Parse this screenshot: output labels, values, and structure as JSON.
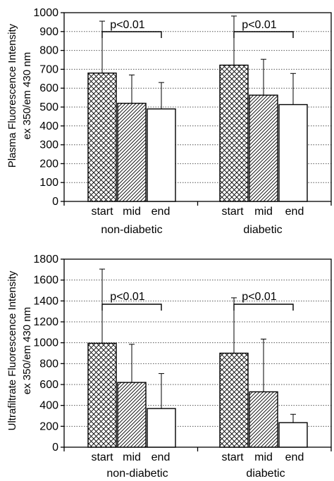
{
  "chart_data": [
    {
      "type": "bar",
      "ylabel_line1": "Plasma Fluorescence Intensity",
      "ylabel_line2": "ex 350/em 430 nm",
      "ylim": [
        0,
        1000
      ],
      "yticks": [
        0,
        100,
        200,
        300,
        400,
        500,
        600,
        700,
        800,
        900,
        1000
      ],
      "grid": "horizontal dotted",
      "categories": [
        "start",
        "mid",
        "end"
      ],
      "groups": [
        {
          "name": "non-diabetic",
          "values": [
            680,
            520,
            490
          ],
          "errors": [
            275,
            150,
            140
          ],
          "annotation": "p<0.01"
        },
        {
          "name": "diabetic",
          "values": [
            722,
            563,
            513
          ],
          "errors": [
            260,
            190,
            165
          ],
          "annotation": "p<0.01"
        }
      ],
      "patterns": [
        "crosshatch",
        "diagonal",
        "white"
      ]
    },
    {
      "type": "bar",
      "ylabel_line1": "Ultrafiltrate Fluorescence Intensity",
      "ylabel_line2": "ex 350/em 430 nm",
      "ylim": [
        0,
        1800
      ],
      "yticks": [
        0,
        200,
        400,
        600,
        800,
        1000,
        1200,
        1400,
        1600,
        1800
      ],
      "grid": "horizontal dotted",
      "categories": [
        "start",
        "mid",
        "end"
      ],
      "groups": [
        {
          "name": "non-diabetic",
          "values": [
            995,
            620,
            370
          ],
          "errors": [
            710,
            365,
            335
          ],
          "annotation": "p<0.01"
        },
        {
          "name": "diabetic",
          "values": [
            900,
            530,
            235
          ],
          "errors": [
            530,
            505,
            80
          ],
          "annotation": "p<0.01"
        }
      ],
      "patterns": [
        "crosshatch",
        "diagonal",
        "white"
      ]
    }
  ]
}
